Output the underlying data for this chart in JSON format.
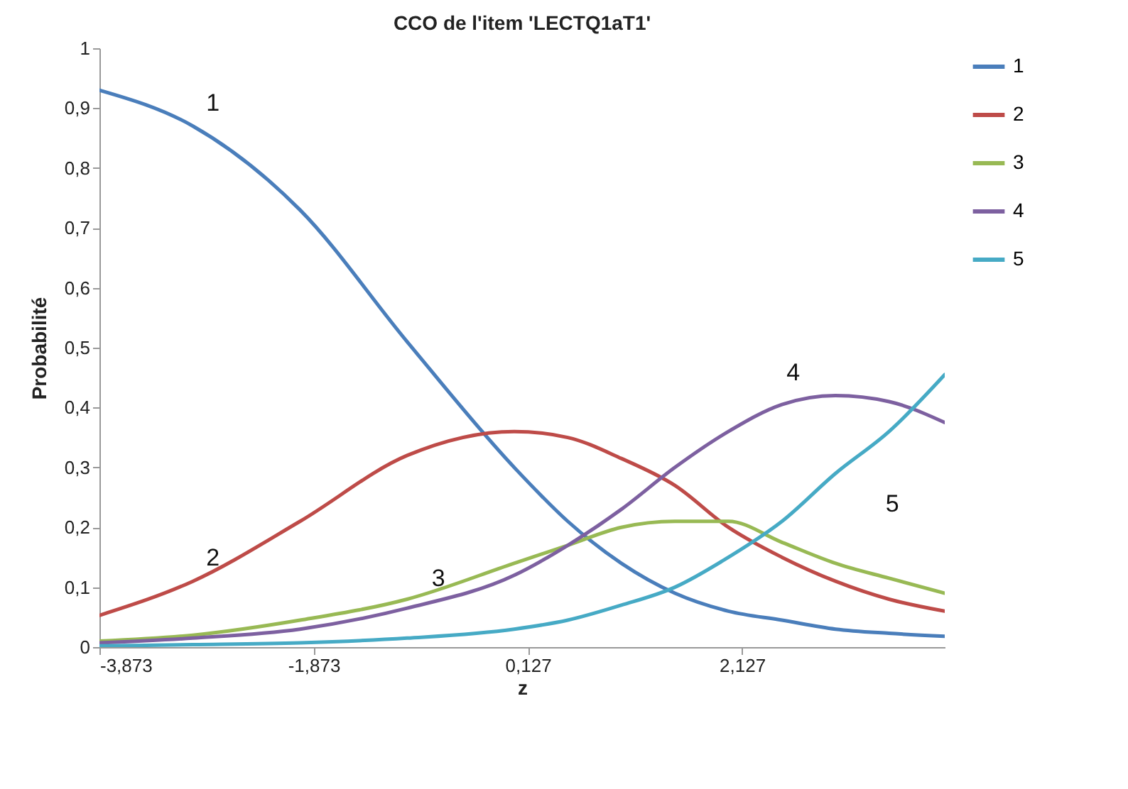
{
  "chart_data": {
    "type": "line",
    "title": "CCO de l'item 'LECTQ1aT1'",
    "xlabel": "z",
    "ylabel": "Probabilité",
    "x": [
      -3.873,
      -3,
      -2,
      -1,
      0,
      0.5,
      1,
      1.5,
      2,
      2.5,
      3,
      3.5,
      4.02
    ],
    "series": [
      {
        "name": "1",
        "color": "#4a7ebb",
        "values": [
          0.93,
          0.87,
          0.73,
          0.51,
          0.3,
          0.21,
          0.14,
          0.09,
          0.06,
          0.045,
          0.03,
          0.023,
          0.018
        ]
      },
      {
        "name": "2",
        "color": "#be4b48",
        "values": [
          0.053,
          0.11,
          0.21,
          0.32,
          0.36,
          0.35,
          0.315,
          0.27,
          0.2,
          0.15,
          0.11,
          0.08,
          0.06
        ]
      },
      {
        "name": "3",
        "color": "#98b954",
        "values": [
          0.01,
          0.02,
          0.045,
          0.08,
          0.14,
          0.17,
          0.2,
          0.21,
          0.21,
          0.175,
          0.14,
          0.115,
          0.09
        ]
      },
      {
        "name": "4",
        "color": "#7d60a0",
        "values": [
          0.007,
          0.015,
          0.03,
          0.065,
          0.12,
          0.17,
          0.23,
          0.3,
          0.36,
          0.405,
          0.42,
          0.41,
          0.375
        ]
      },
      {
        "name": "5",
        "color": "#46aac5",
        "values": [
          0.002,
          0.004,
          0.007,
          0.015,
          0.03,
          0.045,
          0.07,
          0.1,
          0.15,
          0.21,
          0.29,
          0.36,
          0.455
        ]
      }
    ],
    "xlim": [
      -3.873,
      4.02
    ],
    "xticks": [
      {
        "value": -3.873,
        "label": "-3,873"
      },
      {
        "value": -1.873,
        "label": "-1,873"
      },
      {
        "value": 0.127,
        "label": "0,127"
      },
      {
        "value": 2.127,
        "label": "2,127"
      }
    ],
    "ylim": [
      0,
      1
    ],
    "yticks": [
      0,
      {
        "value": 0.1,
        "label": "0,1"
      },
      {
        "value": 0.2,
        "label": "0,2"
      },
      {
        "value": 0.3,
        "label": "0,3"
      },
      {
        "value": 0.4,
        "label": "0,4"
      },
      {
        "value": 0.5,
        "label": "0,5"
      },
      {
        "value": 0.6,
        "label": "0,6"
      },
      {
        "value": 0.7,
        "label": "0,7"
      },
      {
        "value": 0.8,
        "label": "0,8"
      },
      {
        "value": 0.9,
        "label": "0,9"
      },
      1
    ],
    "annotations": [
      {
        "text": "1",
        "x": -3,
        "y": 0.87
      },
      {
        "text": "2",
        "x": -3,
        "y": 0.11
      },
      {
        "text": "3",
        "x": -1,
        "y": 0.08
      },
      {
        "text": "4",
        "x": 2.5,
        "y": 0.405
      },
      {
        "text": "5",
        "x": 3,
        "y": 0.29
      }
    ],
    "grid": false,
    "legend": "right",
    "marker": "none",
    "line_style": "solid"
  }
}
